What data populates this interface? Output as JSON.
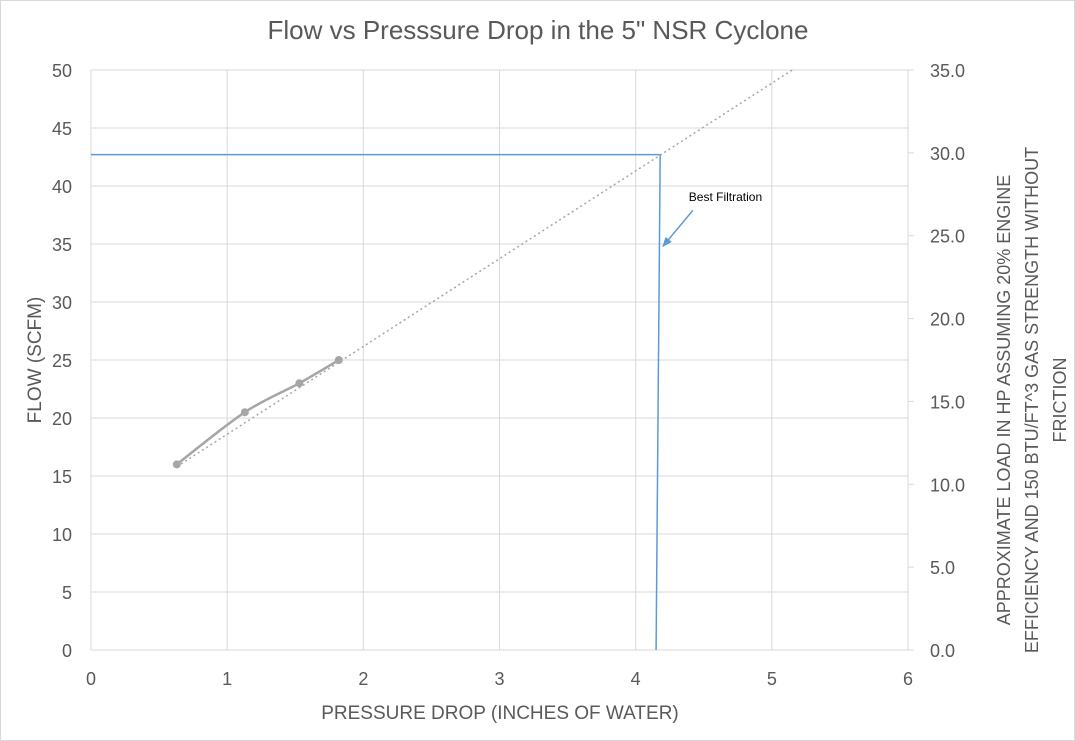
{
  "chart_data": {
    "type": "scatter",
    "title": "Flow vs Presssure Drop in the 5\" NSR Cyclone",
    "xlabel": "PRESSURE DROP (INCHES OF WATER)",
    "ylabel": "FLOW (SCFM)",
    "y2label_lines": [
      "APPROXIMATE LOAD IN HP ASSUMING 20% ENGINE",
      "EFFICIENCY AND 150 BTU/FT^3 GAS STRENGTH WITHOUT",
      "FRICTION"
    ],
    "xlim": [
      0,
      6
    ],
    "ylim": [
      0,
      50
    ],
    "y2lim": [
      0,
      35
    ],
    "x_ticks": [
      "0",
      "1",
      "2",
      "3",
      "4",
      "5",
      "6"
    ],
    "y_ticks": [
      "0",
      "5",
      "10",
      "15",
      "20",
      "25",
      "30",
      "35",
      "40",
      "45",
      "50"
    ],
    "y2_ticks": [
      "0.0",
      "5.0",
      "10.0",
      "15.0",
      "20.0",
      "25.0",
      "30.0",
      "35.0"
    ],
    "grid": true,
    "series": [
      {
        "color": "#a6a6a6",
        "points": [
          {
            "x": 0.63,
            "y": 16.0
          },
          {
            "x": 1.13,
            "y": 20.5
          },
          {
            "x": 1.53,
            "y": 23.0
          },
          {
            "x": 1.82,
            "y": 25.0
          }
        ]
      }
    ],
    "trendline": {
      "color": "#a6a6a6",
      "style": "dotted",
      "points": [
        {
          "x": 0.63,
          "y": 15.8
        },
        {
          "x": 5.15,
          "y": 50.0
        }
      ]
    },
    "marker_lines": {
      "color": "#5b9bd5",
      "horizontal": {
        "x_start": 0,
        "x_end": 4.18,
        "y": 42.7
      },
      "vertical": {
        "x_top": 4.18,
        "x_bottom": 4.15,
        "y_top": 42.7,
        "y_bottom": 0
      }
    },
    "annotation": {
      "text": "Best Filtration",
      "color": "#5b9bd5",
      "text_x": 4.39,
      "text_y": 38.7,
      "arrow_from": {
        "x": 4.42,
        "y": 37.9
      },
      "arrow_to": {
        "x": 4.2,
        "y": 34.8
      }
    }
  }
}
